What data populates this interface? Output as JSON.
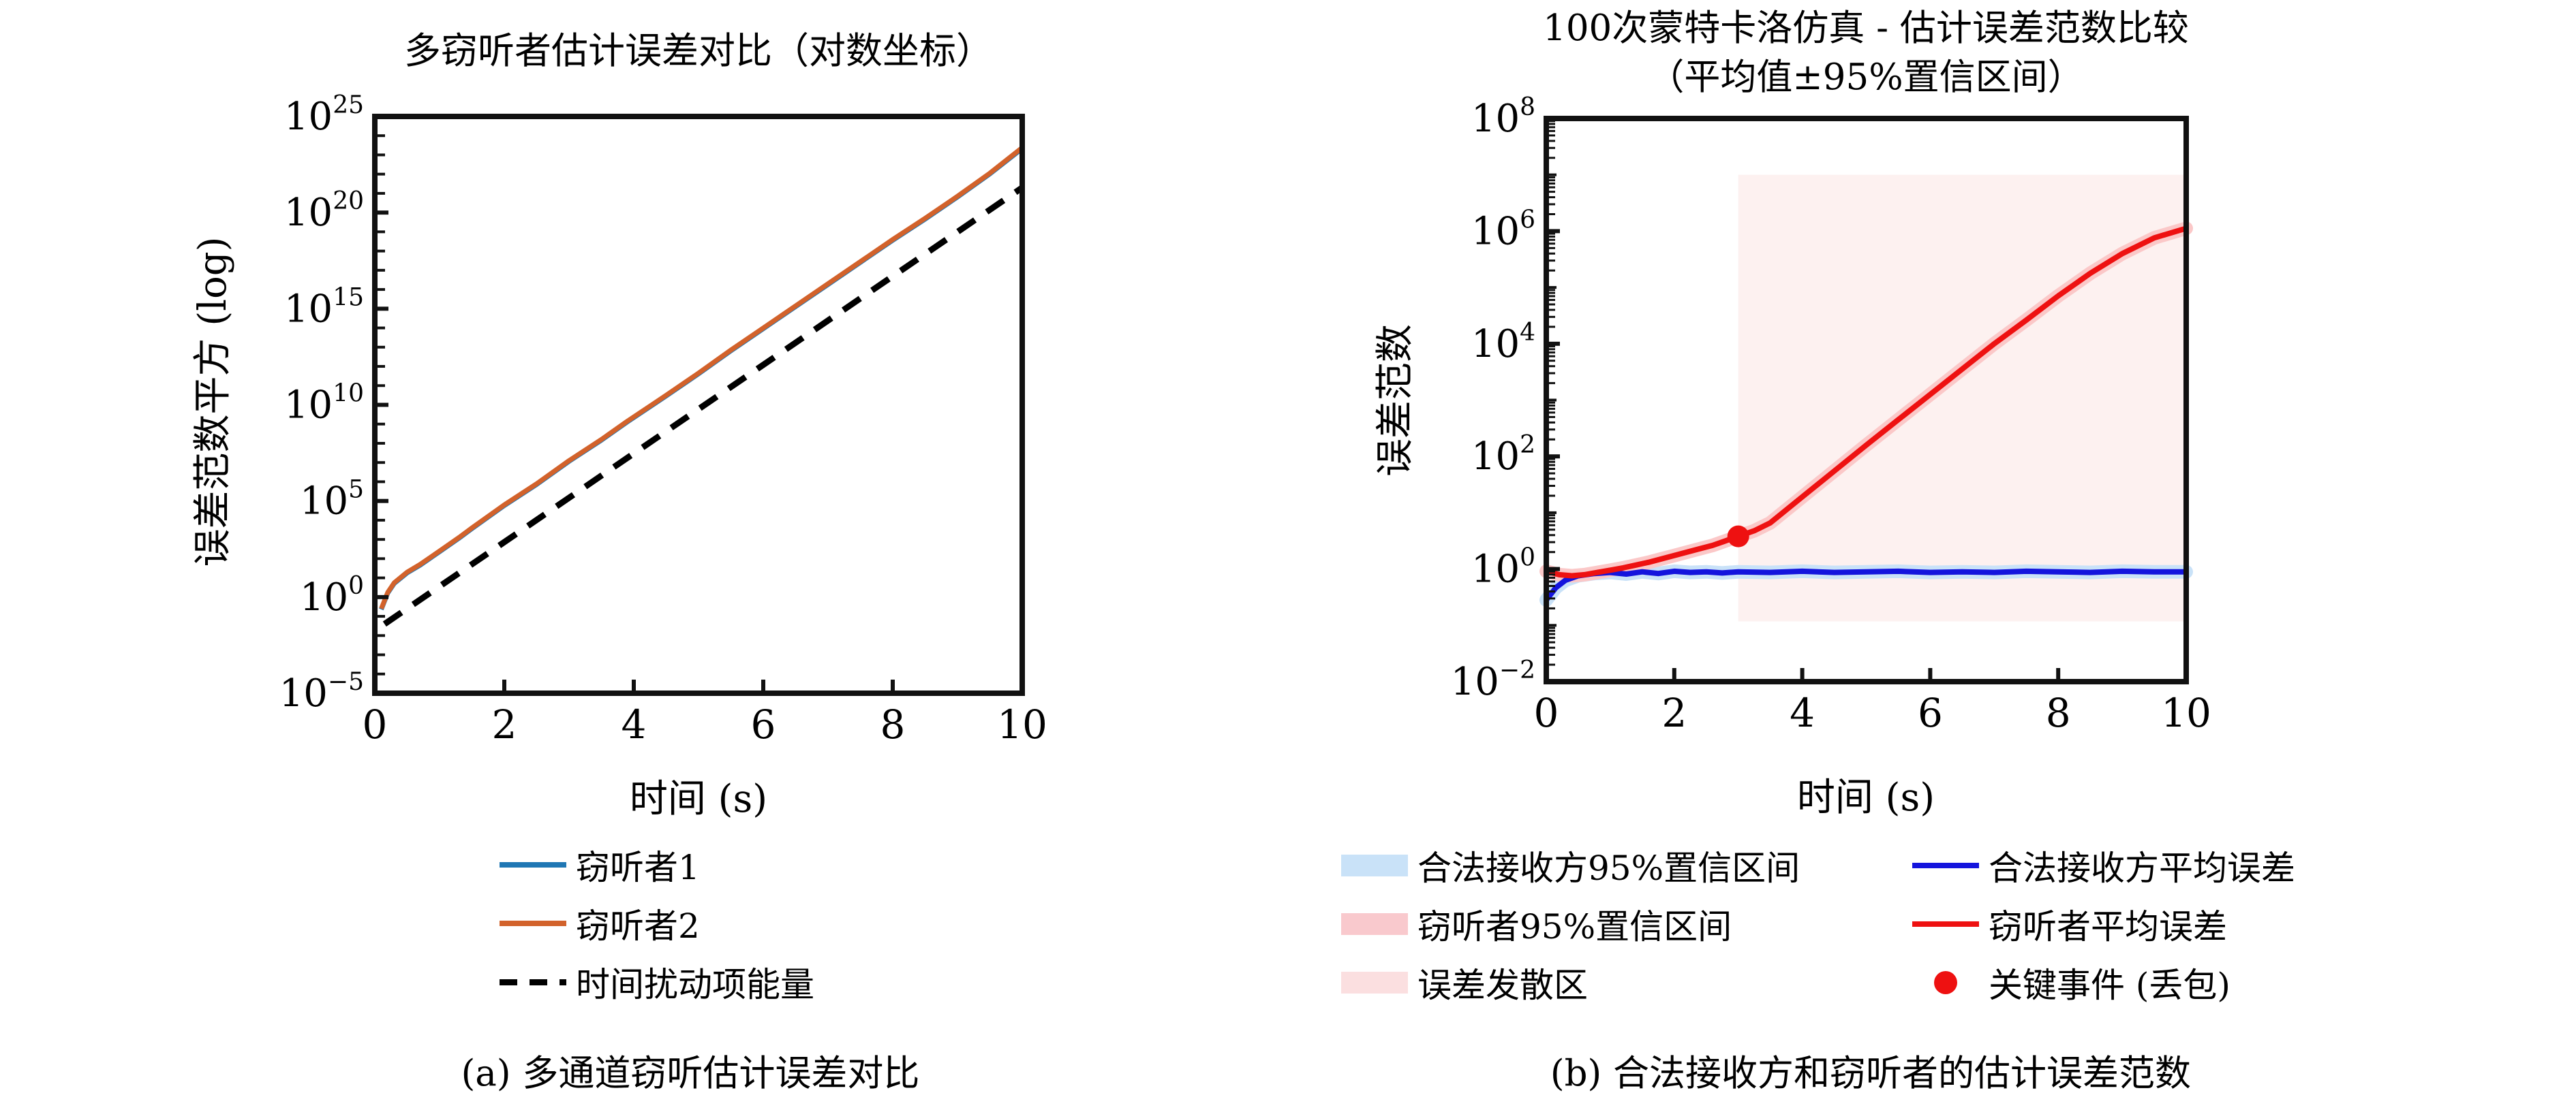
{
  "figure": {
    "background": "#ffffff",
    "caption_a": "(a) 多通道窃听估计误差对比",
    "caption_b": "(b) 合法接收方和窃听者的估计误差范数"
  },
  "chart_data": [
    {
      "type": "line",
      "title": "多窃听者估计误差对比（对数坐标）",
      "xlabel": "时间 (s)",
      "ylabel": "误差范数平方 (log)",
      "caption": "(a) 多通道窃听估计误差对比",
      "xlim": [
        0,
        10
      ],
      "xticks": [
        0,
        2,
        4,
        6,
        8,
        10
      ],
      "yscale": "log",
      "ylim_exp": [
        -5,
        25
      ],
      "ytick_exps": [
        25,
        20,
        15,
        10,
        5,
        0,
        -5
      ],
      "grid": false,
      "legend_position": "below-center",
      "series": [
        {
          "name": "窃听者1",
          "color": "#1f77b4",
          "style": "solid",
          "width": 7,
          "x": [
            0.1,
            0.2,
            0.3,
            0.5,
            0.7,
            1.0,
            1.3,
            1.5,
            2.0,
            2.5,
            3.0,
            3.5,
            3.9,
            4.3,
            4.5,
            5.0,
            5.5,
            6.0,
            6.5,
            7.0,
            7.5,
            8.0,
            8.5,
            9.0,
            9.5,
            10.0
          ],
          "log10y": [
            -0.64,
            0.21,
            0.71,
            1.26,
            1.66,
            2.36,
            3.06,
            3.56,
            4.76,
            5.86,
            7.06,
            8.16,
            9.11,
            10.01,
            10.46,
            11.61,
            12.81,
            13.96,
            15.11,
            16.26,
            17.41,
            18.56,
            19.66,
            20.81,
            22.01,
            23.33
          ]
        },
        {
          "name": "窃听者2",
          "color": "#d2622b",
          "style": "solid",
          "width": 7,
          "x": [
            0.1,
            0.2,
            0.3,
            0.5,
            0.7,
            1.0,
            1.3,
            1.5,
            2.0,
            2.5,
            3.0,
            3.5,
            3.9,
            4.3,
            4.5,
            5.0,
            5.5,
            6.0,
            6.5,
            7.0,
            7.5,
            8.0,
            8.5,
            9.0,
            9.5,
            10.0
          ],
          "log10y": [
            -0.6,
            0.25,
            0.75,
            1.3,
            1.7,
            2.4,
            3.1,
            3.6,
            4.8,
            5.9,
            7.1,
            8.2,
            9.15,
            10.05,
            10.5,
            11.65,
            12.85,
            14.0,
            15.15,
            16.3,
            17.45,
            18.6,
            19.7,
            20.85,
            22.05,
            23.38
          ]
        },
        {
          "name": "时间扰动项能量",
          "color": "#000000",
          "style": "dashed",
          "width": 9,
          "x": [
            0.15,
            10.0
          ],
          "log10y": [
            -1.4,
            21.3
          ]
        }
      ]
    },
    {
      "type": "line",
      "title_line1": "100次蒙特卡洛仿真 - 估计误差范数比较",
      "title_line2": "（平均值±95%置信区间）",
      "xlabel": "时间 (s)",
      "ylabel": "误差范数",
      "caption": "(b) 合法接收方和窃听者的估计误差范数",
      "xlim": [
        0,
        10
      ],
      "xticks": [
        0,
        2,
        4,
        6,
        8,
        10
      ],
      "yscale": "log",
      "ylim_exp": [
        -2,
        8
      ],
      "ytick_exps": [
        8,
        6,
        4,
        2,
        0,
        -2
      ],
      "grid": false,
      "regions": [
        {
          "name": "误差发散区",
          "color": "#fdf1f0",
          "x0": 3.0,
          "x1": 10.0,
          "log10y0": -0.93,
          "log10y1": 7.0
        }
      ],
      "series": [
        {
          "name": "合法接收方平均误差",
          "color": "#1414dd",
          "style": "solid",
          "width": 8,
          "band_color": "#c9e2f8",
          "x": [
            0,
            0.15,
            0.3,
            0.5,
            0.75,
            1.0,
            1.25,
            1.5,
            1.75,
            2.0,
            2.25,
            2.5,
            2.75,
            3.0,
            3.5,
            4.0,
            4.5,
            5.0,
            5.5,
            6.0,
            6.5,
            7.0,
            7.5,
            8.0,
            8.5,
            9.0,
            9.5,
            10.0
          ],
          "log10y": [
            -0.55,
            -0.33,
            -0.2,
            -0.12,
            -0.08,
            -0.06,
            -0.09,
            -0.05,
            -0.08,
            -0.04,
            -0.06,
            -0.05,
            -0.07,
            -0.05,
            -0.06,
            -0.04,
            -0.06,
            -0.05,
            -0.04,
            -0.06,
            -0.05,
            -0.06,
            -0.04,
            -0.05,
            -0.06,
            -0.04,
            -0.05,
            -0.05
          ]
        },
        {
          "name": "窃听者平均误差",
          "color": "#ee1111",
          "style": "solid",
          "width": 8,
          "band_color": "#fbc8c8",
          "x": [
            0,
            0.2,
            0.4,
            0.6,
            0.8,
            1.0,
            1.2,
            1.4,
            1.6,
            1.8,
            2.0,
            2.2,
            2.4,
            2.6,
            2.8,
            3.0,
            3.25,
            3.5,
            4.0,
            4.5,
            5.0,
            5.5,
            6.0,
            6.5,
            7.0,
            7.5,
            8.0,
            8.5,
            9.0,
            9.5,
            10.0
          ],
          "log10y": [
            -0.04,
            -0.1,
            -0.12,
            -0.1,
            -0.06,
            -0.02,
            0.02,
            0.07,
            0.12,
            0.18,
            0.24,
            0.3,
            0.36,
            0.42,
            0.5,
            0.58,
            0.68,
            0.82,
            1.28,
            1.74,
            2.2,
            2.65,
            3.1,
            3.55,
            4.0,
            4.42,
            4.85,
            5.25,
            5.6,
            5.88,
            6.05
          ]
        }
      ],
      "markers": [
        {
          "name": "关键事件 (丢包)",
          "color": "#ee1111",
          "x": 3.0,
          "log10y": 0.58,
          "radius": 16
        }
      ],
      "legend_columns": {
        "left": [
          {
            "label": "合法接收方95%置信区间",
            "swatch": "patch",
            "color": "#c9e2f8"
          },
          {
            "label": "窃听者95%置信区间",
            "swatch": "patch",
            "color": "#f9c9cd"
          },
          {
            "label": "误差发散区",
            "swatch": "patch",
            "color": "#fbdfe0"
          }
        ],
        "right": [
          {
            "label": "合法接收方平均误差",
            "swatch": "line",
            "color": "#1414dd"
          },
          {
            "label": "窃听者平均误差",
            "swatch": "line",
            "color": "#ee1111"
          },
          {
            "label": "关键事件 (丢包)",
            "swatch": "dot",
            "color": "#ee1111"
          }
        ]
      }
    }
  ]
}
